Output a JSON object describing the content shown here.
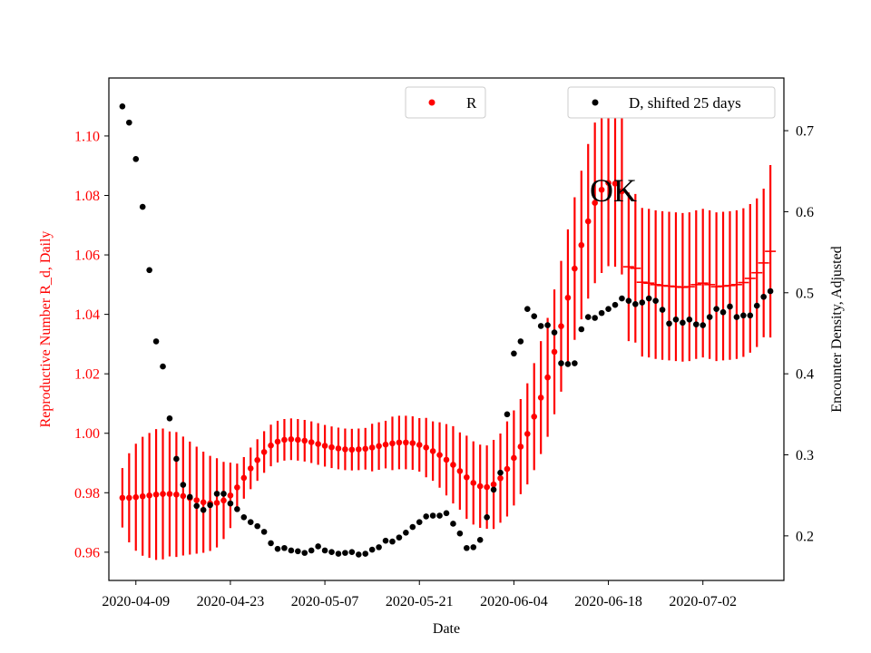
{
  "chart_data": {
    "type": "scatter",
    "title": "",
    "annotation": "OK",
    "xlabel": "Date",
    "ylabel_left": "Reproductive Number R_d, Daily",
    "ylabel_right": "Encounter Density, Adjusted",
    "x_start": "2020-04-07",
    "x_ticks": [
      "2020-04-09",
      "2020-04-23",
      "2020-05-07",
      "2020-05-21",
      "2020-06-04",
      "2020-06-18",
      "2020-07-02"
    ],
    "y_left_ticks": [
      "0.96",
      "0.98",
      "1.00",
      "1.02",
      "1.04",
      "1.06",
      "1.08",
      "1.10"
    ],
    "y_right_ticks": [
      "0.2",
      "0.3",
      "0.4",
      "0.5",
      "0.6",
      "0.7"
    ],
    "xlim": [
      "2020-04-05",
      "2020-07-14"
    ],
    "ylim_left": [
      0.9505,
      1.1195
    ],
    "ylim_right": [
      0.145,
      0.765
    ],
    "grid": false,
    "legend": [
      {
        "label": "R",
        "placement": "top-center"
      },
      {
        "label": "D, shifted 25 days",
        "placement": "top-right"
      }
    ],
    "colors": {
      "R": "#ff0000",
      "D": "#000000",
      "left_axis": "#ff0000",
      "right_axis": "#000000"
    },
    "series": [
      {
        "name": "R",
        "axis": "left",
        "values": [
          0.9783,
          0.9783,
          0.9785,
          0.9788,
          0.9791,
          0.9794,
          0.9796,
          0.9796,
          0.9794,
          0.9789,
          0.9782,
          0.9775,
          0.9768,
          0.9764,
          0.9766,
          0.9774,
          0.9791,
          0.9818,
          0.985,
          0.9882,
          0.991,
          0.9937,
          0.9959,
          0.9972,
          0.9978,
          0.998,
          0.9978,
          0.9975,
          0.997,
          0.9964,
          0.9958,
          0.9953,
          0.9949,
          0.9946,
          0.9945,
          0.9946,
          0.9948,
          0.9952,
          0.9957,
          0.9962,
          0.9966,
          0.9969,
          0.9969,
          0.9967,
          0.9961,
          0.9952,
          0.994,
          0.9927,
          0.9911,
          0.9894,
          0.9873,
          0.9852,
          0.9833,
          0.9822,
          0.9819,
          0.9828,
          0.9849,
          0.988,
          0.9917,
          0.9955,
          0.9998,
          1.0056,
          1.012,
          1.0188,
          1.0274,
          1.036,
          1.0456,
          1.0554,
          1.0633,
          1.0713,
          1.0775,
          1.0819,
          1.0842,
          1.084,
          1.0814
        ],
        "errors": [
          0.01,
          0.015,
          0.018,
          0.02,
          0.021,
          0.022,
          0.022,
          0.021,
          0.021,
          0.02,
          0.019,
          0.018,
          0.017,
          0.016,
          0.015,
          0.013,
          0.011,
          0.008,
          0.007,
          0.007,
          0.007,
          0.007,
          0.007,
          0.007,
          0.007,
          0.007,
          0.007,
          0.007,
          0.007,
          0.007,
          0.007,
          0.007,
          0.007,
          0.007,
          0.007,
          0.007,
          0.007,
          0.008,
          0.008,
          0.008,
          0.009,
          0.009,
          0.009,
          0.009,
          0.009,
          0.01,
          0.01,
          0.011,
          0.012,
          0.013,
          0.013,
          0.014,
          0.014,
          0.014,
          0.014,
          0.015,
          0.015,
          0.016,
          0.016,
          0.016,
          0.017,
          0.018,
          0.019,
          0.02,
          0.021,
          0.022,
          0.023,
          0.024,
          0.025,
          0.026,
          0.027,
          0.028,
          0.028,
          0.028,
          0.028
        ]
      },
      {
        "name": "R",
        "axis": "left",
        "style": "hline",
        "values": [
          1.056,
          1.0555,
          1.0508,
          1.0505,
          1.05,
          1.0497,
          1.0495,
          1.0493,
          1.0491,
          1.0493,
          1.05,
          1.0505,
          1.05,
          1.0493,
          1.0495,
          1.0497,
          1.05,
          1.0507,
          1.0521,
          1.054,
          1.0573,
          1.0612
        ],
        "errors": [
          0.025,
          0.025,
          0.025,
          0.025,
          0.025,
          0.025,
          0.025,
          0.025,
          0.025,
          0.025,
          0.025,
          0.025,
          0.025,
          0.025,
          0.025,
          0.025,
          0.025,
          0.025,
          0.025,
          0.025,
          0.025,
          0.029
        ]
      },
      {
        "name": "D, shifted 25 days",
        "axis": "right",
        "values": [
          0.73,
          0.71,
          0.665,
          0.606,
          0.528,
          0.44,
          0.409,
          0.345,
          0.295,
          0.263,
          0.248,
          0.237,
          0.232,
          0.238,
          0.252,
          0.252,
          0.24,
          0.233,
          0.223,
          0.217,
          0.212,
          0.205,
          0.191,
          0.184,
          0.185,
          0.182,
          0.181,
          0.179,
          0.182,
          0.187,
          0.182,
          0.18,
          0.178,
          0.179,
          0.18,
          0.177,
          0.178,
          0.183,
          0.186,
          0.194,
          0.193,
          0.198,
          0.204,
          0.211,
          0.217,
          0.224,
          0.225,
          0.225,
          0.228,
          0.215,
          0.203,
          0.185,
          0.186,
          0.195,
          0.223,
          0.257,
          0.278,
          0.35,
          0.425,
          0.44,
          0.48,
          0.471,
          0.459,
          0.46,
          0.451,
          0.413,
          0.412,
          0.413,
          0.455,
          0.47,
          0.469,
          0.475,
          0.48,
          0.485,
          0.493,
          0.49,
          0.486,
          0.488,
          0.493,
          0.49,
          0.479,
          0.462,
          0.467,
          0.463,
          0.467,
          0.461,
          0.46,
          0.47,
          0.48,
          0.476,
          0.483,
          0.47,
          0.472,
          0.472,
          0.484,
          0.495,
          0.502
        ]
      }
    ]
  }
}
